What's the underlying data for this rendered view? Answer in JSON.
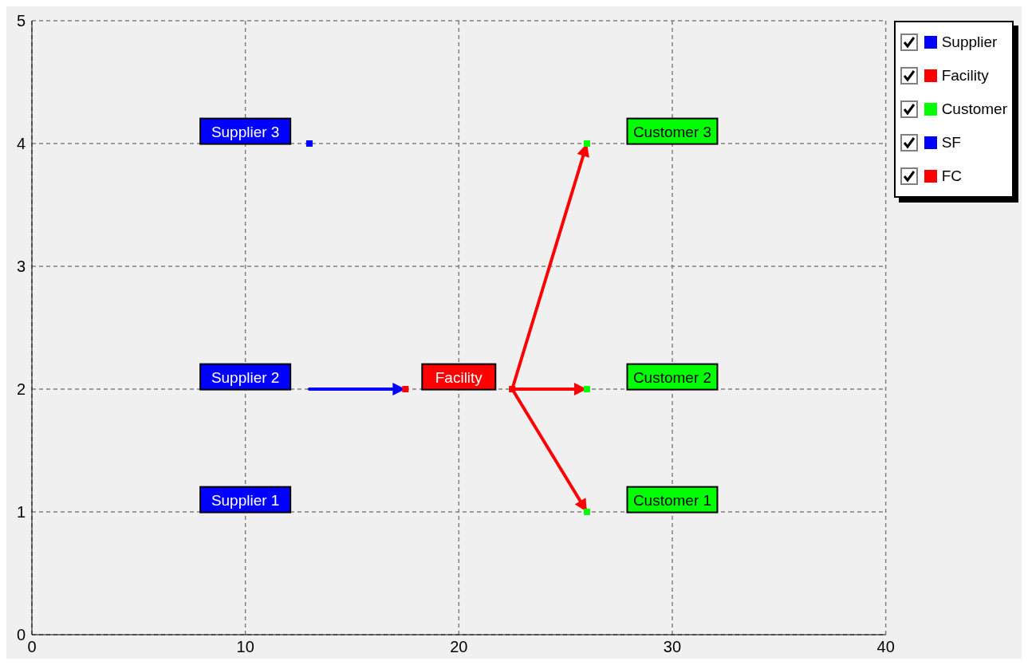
{
  "chart_data": {
    "type": "scatter",
    "xlim": [
      0,
      40
    ],
    "xticks": [
      0,
      10,
      20,
      30,
      40
    ],
    "ylim": [
      0,
      5
    ],
    "yticks": [
      0,
      1,
      2,
      3,
      4,
      5
    ],
    "grid": true,
    "legend": "top right",
    "marker": "square",
    "series": [
      {
        "name": "Supplier",
        "type": "scatter",
        "color": "#0000ff",
        "x": [
          13
        ],
        "values": [
          4
        ]
      },
      {
        "name": "Facility",
        "type": "scatter",
        "color": "#ff0000",
        "x": [
          17.5,
          22.5
        ],
        "values": [
          2,
          2
        ]
      },
      {
        "name": "Customer",
        "type": "scatter",
        "color": "#00ff00",
        "x": [
          26,
          26,
          26
        ],
        "values": [
          4,
          2,
          1
        ]
      },
      {
        "name": "SF",
        "type": "line",
        "marker": "none",
        "color": "#0000ff",
        "x": [
          13,
          17.5
        ],
        "values": [
          2,
          2
        ]
      },
      {
        "name": "FC",
        "type": "line",
        "marker": "none",
        "color": "#ff0000",
        "x": [
          22.5,
          26
        ],
        "values": [
          2,
          4
        ]
      },
      {
        "type": "line",
        "marker": "none",
        "color": "#ff0000",
        "x": [
          22.5,
          26
        ],
        "values": [
          2,
          2
        ]
      },
      {
        "type": "line",
        "marker": "none",
        "color": "#ff0000",
        "x": [
          22.5,
          26
        ],
        "values": [
          2,
          1
        ]
      }
    ],
    "annotations": [
      "Supplier 3",
      "Supplier 2",
      "Supplier 1",
      "Facility",
      "Customer 3",
      "Customer 2",
      "Customer 1"
    ]
  }
}
